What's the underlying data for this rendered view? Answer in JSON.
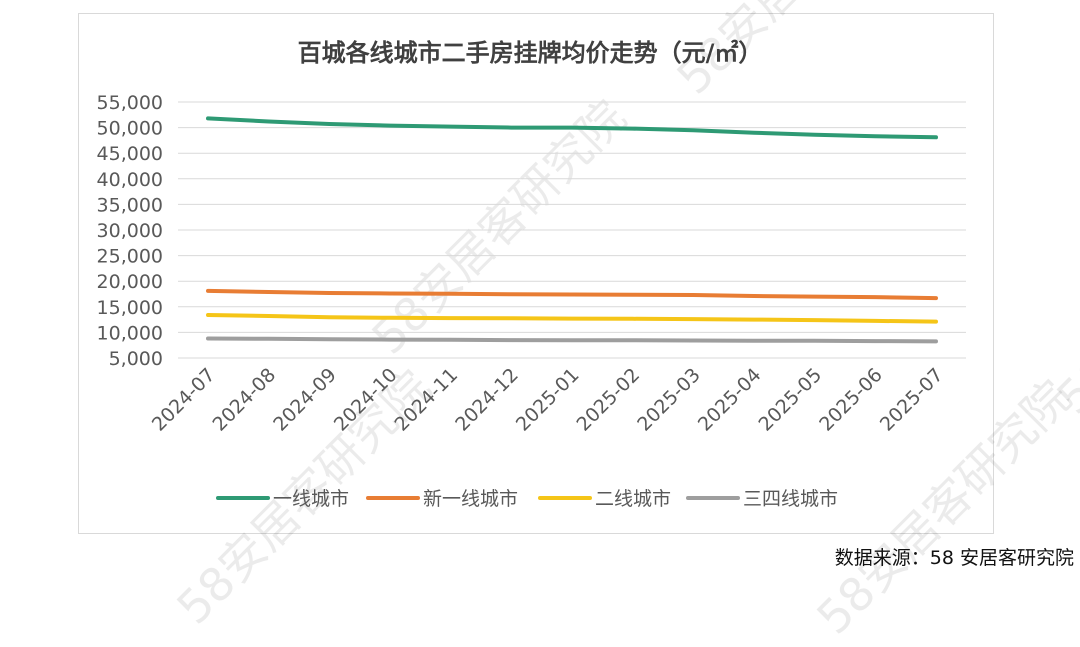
{
  "watermark_text": "58安居客研究院",
  "source_text": "数据来源：58 安居客研究院",
  "chart_data": {
    "type": "line",
    "title": "百城各线城市二手房挂牌均价走势（元/㎡）",
    "xlabel": "",
    "ylabel": "",
    "x": [
      "2024-07",
      "2024-08",
      "2024-09",
      "2024-10",
      "2024-11",
      "2024-12",
      "2025-01",
      "2025-02",
      "2025-03",
      "2025-04",
      "2025-05",
      "2025-06",
      "2025-07"
    ],
    "ylim": [
      5000,
      55000
    ],
    "yticks": [
      5000,
      10000,
      15000,
      20000,
      25000,
      30000,
      35000,
      40000,
      45000,
      50000,
      55000
    ],
    "ytick_labels": [
      "5,000",
      "10,000",
      "15,000",
      "20,000",
      "25,000",
      "30,000",
      "35,000",
      "40,000",
      "45,000",
      "50,000",
      "55,000"
    ],
    "grid": true,
    "legend_position": "bottom",
    "series": [
      {
        "name": "一线城市",
        "color": "#2e9a74",
        "values": [
          51800,
          51200,
          50700,
          50400,
          50200,
          50000,
          50000,
          49800,
          49500,
          49000,
          48600,
          48300,
          48100
        ]
      },
      {
        "name": "新一线城市",
        "color": "#e87d34",
        "values": [
          18100,
          17900,
          17700,
          17600,
          17550,
          17450,
          17400,
          17350,
          17300,
          17100,
          17000,
          16900,
          16700
        ]
      },
      {
        "name": "二线城市",
        "color": "#f5c518",
        "values": [
          13400,
          13200,
          12950,
          12850,
          12800,
          12750,
          12700,
          12650,
          12600,
          12500,
          12400,
          12250,
          12100
        ]
      },
      {
        "name": "三四线城市",
        "color": "#9e9e9e",
        "values": [
          8800,
          8750,
          8650,
          8600,
          8550,
          8500,
          8480,
          8450,
          8420,
          8380,
          8350,
          8300,
          8250
        ]
      }
    ]
  }
}
